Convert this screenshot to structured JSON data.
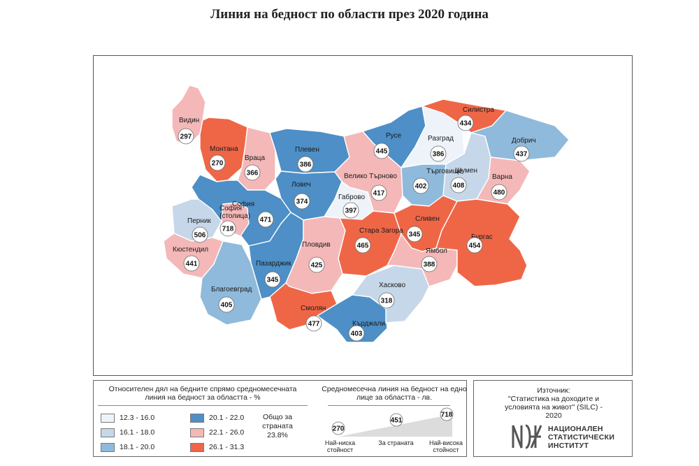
{
  "title": "Линия на бедност по области през 2020 година",
  "colors": {
    "c1": "#eef2f9",
    "c2": "#c6d7ea",
    "c3": "#8fbadb",
    "c4": "#4d8fc6",
    "c5": "#f4b8b8",
    "c6": "#ef6647"
  },
  "regions": [
    {
      "name": "Видин",
      "value": "297",
      "cls": "c5"
    },
    {
      "name": "Монтана",
      "value": "270",
      "cls": "c6"
    },
    {
      "name": "Враца",
      "value": "366",
      "cls": "c5"
    },
    {
      "name": "Плевен",
      "value": "386",
      "cls": "c4"
    },
    {
      "name": "Ловеч",
      "value": "374",
      "cls": "c4"
    },
    {
      "name": "Велико Търново",
      "value": "417",
      "cls": "c5"
    },
    {
      "name": "Габрово",
      "value": "397",
      "cls": "c1"
    },
    {
      "name": "Русе",
      "value": "445",
      "cls": "c4"
    },
    {
      "name": "Разград",
      "value": "386",
      "cls": "c1"
    },
    {
      "name": "Силистра",
      "value": "434",
      "cls": "c6"
    },
    {
      "name": "Търговище",
      "value": "402",
      "cls": "c3"
    },
    {
      "name": "Шумен",
      "value": "408",
      "cls": "c2"
    },
    {
      "name": "Добрич",
      "value": "437",
      "cls": "c3"
    },
    {
      "name": "Варна",
      "value": "480",
      "cls": "c5"
    },
    {
      "name": "София",
      "value": "471",
      "cls": "c4"
    },
    {
      "name": "София (столица)",
      "value": "718",
      "cls": "c5"
    },
    {
      "name": "Перник",
      "value": "506",
      "cls": "c2"
    },
    {
      "name": "Кюстендил",
      "value": "441",
      "cls": "c5"
    },
    {
      "name": "Благоевград",
      "value": "405",
      "cls": "c3"
    },
    {
      "name": "Пазарджик",
      "value": "345",
      "cls": "c4"
    },
    {
      "name": "Пловдив",
      "value": "425",
      "cls": "c5"
    },
    {
      "name": "Смолян",
      "value": "477",
      "cls": "c6"
    },
    {
      "name": "Кърджали",
      "value": "403",
      "cls": "c4"
    },
    {
      "name": "Хасково",
      "value": "318",
      "cls": "c2"
    },
    {
      "name": "Стара Загора",
      "value": "465",
      "cls": "c6"
    },
    {
      "name": "Сливен",
      "value": "345",
      "cls": "c6"
    },
    {
      "name": "Ямбол",
      "value": "388",
      "cls": "c5"
    },
    {
      "name": "Бургас",
      "value": "454",
      "cls": "c6"
    }
  ],
  "legend": {
    "title": "Относителен дял на бедните спрямо средномесечната линия на бедност за областта - %",
    "bins": [
      {
        "label": "12.3 - 16.0",
        "cls": "c1"
      },
      {
        "label": "16.1 - 18.0",
        "cls": "c2"
      },
      {
        "label": "18.1 - 20.0",
        "cls": "c3"
      },
      {
        "label": "20.1 - 22.0",
        "cls": "c4"
      },
      {
        "label": "22.1 - 26.0",
        "cls": "c5"
      },
      {
        "label": "26.1 - 31.3",
        "cls": "c6"
      }
    ],
    "country_total_label": "Общо за страната",
    "country_total_value": "23.8%"
  },
  "poverty_line_legend": {
    "title": "Средномесечна линия на бедност на едно лице за областта - лв.",
    "min_value": "270",
    "country_value": "451",
    "max_value": "718",
    "min_label": "Най-ниска стойност",
    "country_label": "За страната",
    "max_label": "Най-висока стойност"
  },
  "source": {
    "label": "Източник:",
    "text": "\"Статистика на доходите и условията на живот\" (SILC) - 2020",
    "institute": "НАЦИОНАЛЕН СТАТИСТИЧЕСКИ ИНСТИТУТ"
  }
}
